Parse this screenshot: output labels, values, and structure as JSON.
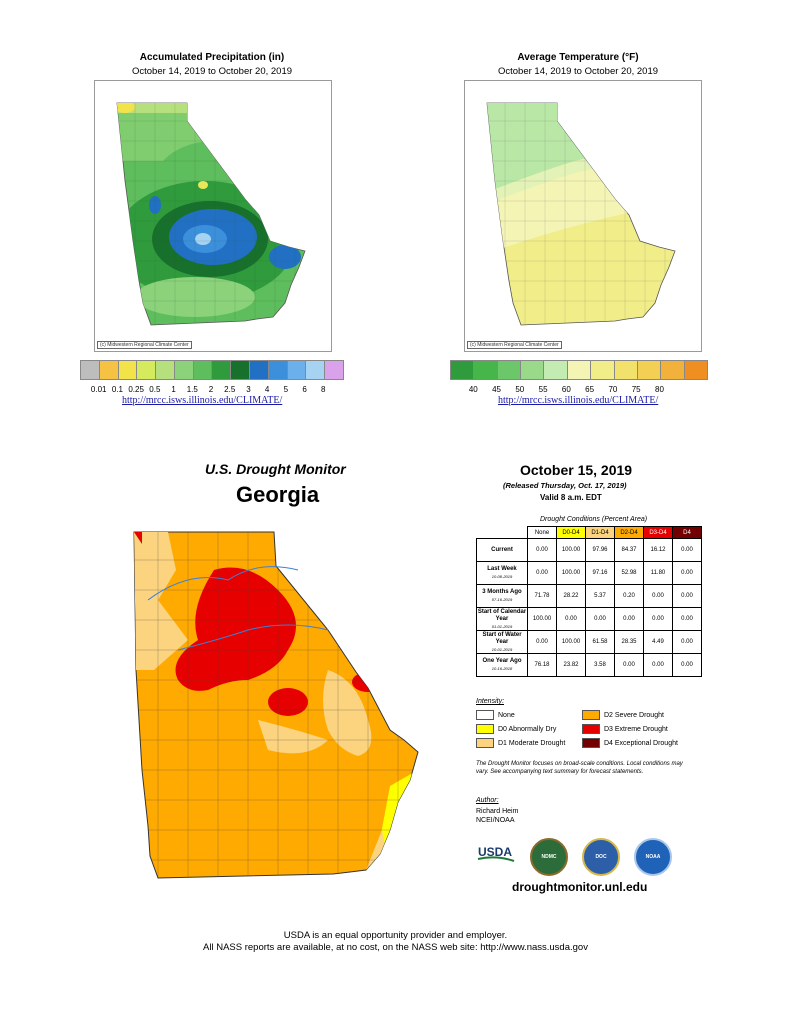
{
  "precip": {
    "title": "Accumulated Precipitation (in)",
    "dates": "October 14, 2019 to October 20, 2019",
    "credit": "(c) Midwestern Regional Climate Center",
    "legend_colors": [
      "#bdbdbd",
      "#f6c243",
      "#f2e34a",
      "#d6ea5e",
      "#b6e07e",
      "#8bd27a",
      "#5ebd5c",
      "#2f9b3d",
      "#17702c",
      "#2170c4",
      "#3b8fdb",
      "#6bb0ea",
      "#a7d3f3",
      "#d9a2ea"
    ],
    "legend_labels": [
      "0.01",
      "0.1",
      "0.25",
      "0.5",
      "1",
      "1.5",
      "2",
      "2.5",
      "3",
      "4",
      "5",
      "6",
      "8"
    ],
    "link": "http://mrcc.isws.illinois.edu/CLIMATE/"
  },
  "temp": {
    "title": "Average Temperature (°F)",
    "dates": "October 14, 2019 to October 20, 2019",
    "credit": "(c) Midwestern Regional Climate Center",
    "legend_colors": [
      "#2f9b3d",
      "#46b54a",
      "#6cc76a",
      "#9ad98a",
      "#c3ebb2",
      "#f4f5b5",
      "#f1ee8a",
      "#f2e16a",
      "#f3cf53",
      "#f2b13a",
      "#ef8f22"
    ],
    "legend_labels": [
      "40",
      "45",
      "50",
      "55",
      "60",
      "65",
      "70",
      "75",
      "80"
    ],
    "link": "http://mrcc.isws.illinois.edu/CLIMATE/"
  },
  "drought": {
    "heading1": "U.S. Drought Monitor",
    "heading2": "Georgia",
    "date": "October 15, 2019",
    "released": "(Released Thursday, Oct. 17, 2019)",
    "valid": "Valid 8 a.m. EDT",
    "table_caption": "Drought Conditions (Percent Area)",
    "columns": [
      "None",
      "D0-D4",
      "D1-D4",
      "D2-D4",
      "D3-D4",
      "D4"
    ],
    "column_colors": [
      "#ffffff",
      "#ffff00",
      "#fcd37f",
      "#ffaa00",
      "#e60000",
      "#730000"
    ],
    "rows": [
      {
        "label": "Current",
        "date": "",
        "values": [
          "0.00",
          "100.00",
          "97.96",
          "84.37",
          "16.12",
          "0.00"
        ]
      },
      {
        "label": "Last Week",
        "date": "10-08-2019",
        "values": [
          "0.00",
          "100.00",
          "97.16",
          "52.98",
          "11.80",
          "0.00"
        ]
      },
      {
        "label": "3 Months Ago",
        "date": "07-16-2019",
        "values": [
          "71.78",
          "28.22",
          "5.37",
          "0.20",
          "0.00",
          "0.00"
        ]
      },
      {
        "label": "Start of Calendar Year",
        "date": "01-01-2019",
        "values": [
          "100.00",
          "0.00",
          "0.00",
          "0.00",
          "0.00",
          "0.00"
        ]
      },
      {
        "label": "Start of Water Year",
        "date": "10-01-2019",
        "values": [
          "0.00",
          "100.00",
          "61.58",
          "28.35",
          "4.49",
          "0.00"
        ]
      },
      {
        "label": "One Year Ago",
        "date": "10-16-2018",
        "values": [
          "76.18",
          "23.82",
          "3.58",
          "0.00",
          "0.00",
          "0.00"
        ]
      }
    ],
    "intensity_title": "Intensity:",
    "intensity": [
      {
        "label": "None",
        "color": "#ffffff"
      },
      {
        "label": "D0 Abnormally Dry",
        "color": "#ffff00"
      },
      {
        "label": "D1 Moderate Drought",
        "color": "#fcd37f"
      },
      {
        "label": "D2 Severe Drought",
        "color": "#ffaa00"
      },
      {
        "label": "D3 Extreme Drought",
        "color": "#e60000"
      },
      {
        "label": "D4 Exceptional Drought",
        "color": "#730000"
      }
    ],
    "note": "The Drought Monitor focuses on broad-scale conditions. Local conditions may vary. See accompanying text summary for forecast statements.",
    "author_title": "Author:",
    "author_name": "Richard Heim",
    "author_org": "NCEI/NOAA",
    "logos": [
      "USDA",
      "NDMC",
      "DOC",
      "NOAA"
    ],
    "url": "droughtmonitor.unl.edu"
  },
  "footer": {
    "line1": "USDA is an equal opportunity provider and employer.",
    "line2": "All NASS reports are available, at no cost, on the NASS web site:  http://www.nass.usda.gov"
  }
}
